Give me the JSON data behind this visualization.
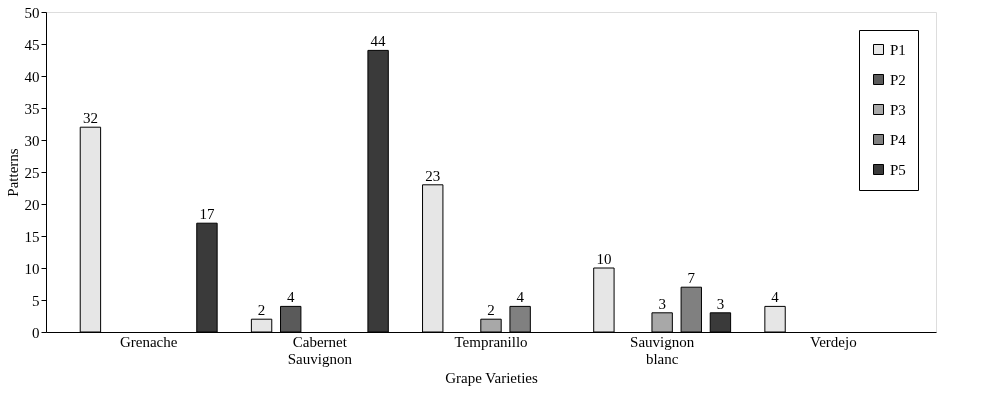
{
  "chart_data": {
    "type": "bar",
    "xlabel": "Grape Varieties",
    "ylabel": "Patterns",
    "categories": [
      "Grenache",
      "Cabernet Sauvignon",
      "Tempranillo",
      "Sauvignon blanc",
      "Verdejo"
    ],
    "series": [
      {
        "name": "P1",
        "color": "#e6e6e6",
        "values": [
          32,
          2,
          23,
          10,
          4
        ]
      },
      {
        "name": "P2",
        "color": "#5a5a5a",
        "values": [
          null,
          4,
          null,
          null,
          null
        ]
      },
      {
        "name": "P3",
        "color": "#a8a8a8",
        "values": [
          null,
          null,
          2,
          3,
          null
        ]
      },
      {
        "name": "P4",
        "color": "#808080",
        "values": [
          null,
          null,
          4,
          7,
          null
        ]
      },
      {
        "name": "P5",
        "color": "#3a3a3a",
        "values": [
          17,
          44,
          null,
          3,
          null
        ]
      }
    ],
    "ylim": [
      0,
      50
    ],
    "yticks": [
      0,
      5,
      10,
      15,
      20,
      25,
      30,
      35,
      40,
      45,
      50
    ],
    "grid": false,
    "legend": "top right",
    "data_labels": true
  }
}
